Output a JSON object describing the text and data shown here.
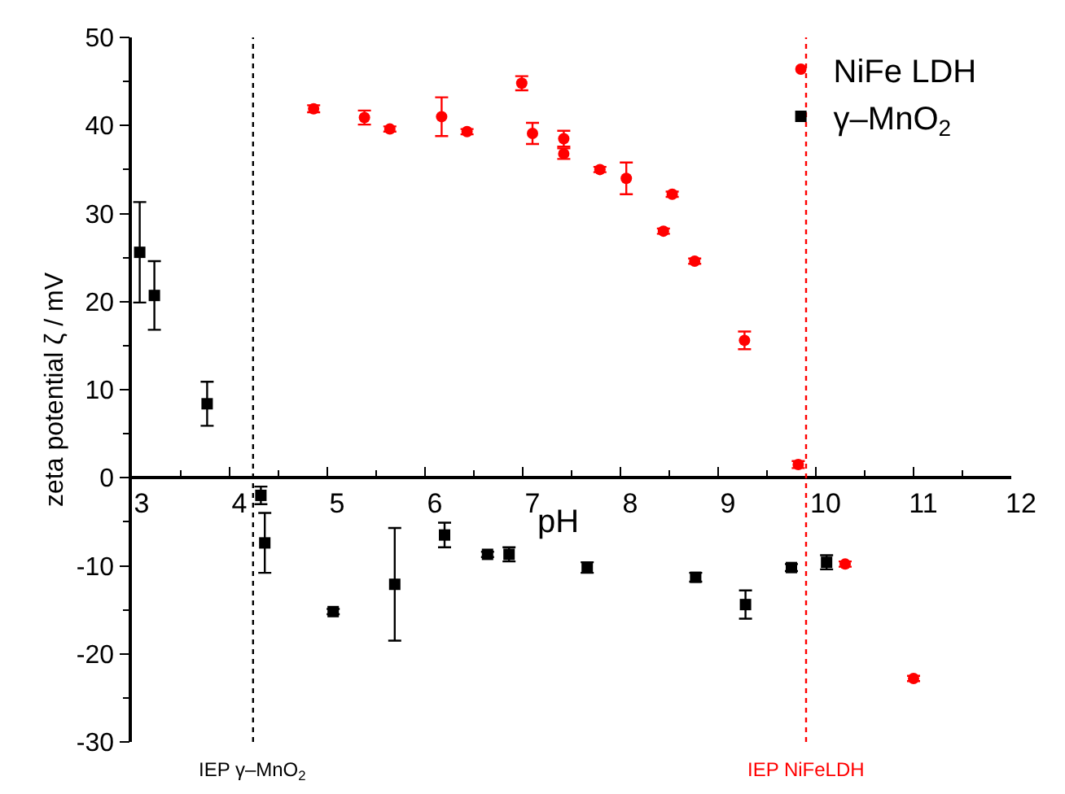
{
  "chart_data": {
    "type": "scatter",
    "xlabel": "pH",
    "ylabel": "zeta potential ζ / mV",
    "xlim": [
      3,
      12
    ],
    "ylim": [
      -30,
      50
    ],
    "xticks": [
      3,
      4,
      5,
      6,
      7,
      8,
      9,
      10,
      11,
      12
    ],
    "yticks": [
      -30,
      -20,
      -10,
      0,
      10,
      20,
      30,
      40,
      50
    ],
    "legend": "top right",
    "series": [
      {
        "name": "NiFe LDH",
        "color": "#ff0000",
        "marker": "circle",
        "x": [
          4.86,
          5.38,
          5.64,
          6.17,
          6.43,
          6.99,
          7.1,
          7.42,
          7.42,
          7.79,
          8.06,
          8.53,
          8.44,
          8.76,
          9.27,
          9.82,
          10.3,
          11.0
        ],
        "values": [
          41.9,
          40.9,
          39.6,
          41.0,
          39.3,
          44.8,
          39.1,
          38.5,
          36.8,
          35.0,
          34.0,
          32.2,
          28.0,
          24.6,
          15.6,
          1.5,
          -9.8,
          -22.8
        ],
        "errors": [
          0.4,
          0.8,
          0.3,
          2.2,
          0.3,
          0.8,
          1.2,
          0.9,
          0.6,
          0.3,
          1.8,
          0.3,
          0.3,
          0.3,
          1.0,
          0.4,
          0.3,
          0.3
        ]
      },
      {
        "name": "γ–MnO$_{2}$",
        "color": "#000000",
        "marker": "square",
        "x": [
          3.08,
          3.23,
          3.77,
          4.32,
          4.36,
          5.06,
          5.69,
          6.2,
          6.64,
          6.86,
          7.66,
          8.77,
          9.28,
          9.75,
          10.11
        ],
        "values": [
          25.6,
          20.7,
          8.4,
          -2.0,
          -7.4,
          -15.2,
          -12.1,
          -6.5,
          -8.7,
          -8.7,
          -10.2,
          -11.3,
          -14.4,
          -10.2,
          -9.6
        ],
        "errors": [
          5.7,
          3.9,
          2.5,
          1.0,
          3.4,
          0.3,
          6.4,
          1.4,
          0.3,
          0.8,
          0.6,
          0.5,
          1.6,
          0.4,
          0.8
        ]
      }
    ],
    "ref_lines": [
      {
        "axis": "x",
        "value": 4.24,
        "label": "IEP γ–MnO$_{2}$",
        "color": "#000000",
        "line_style": "dotted"
      },
      {
        "axis": "x",
        "value": 9.9,
        "label": "IEP NiFeLDH",
        "color": "#ff0000",
        "line_style": "dotted"
      }
    ]
  }
}
